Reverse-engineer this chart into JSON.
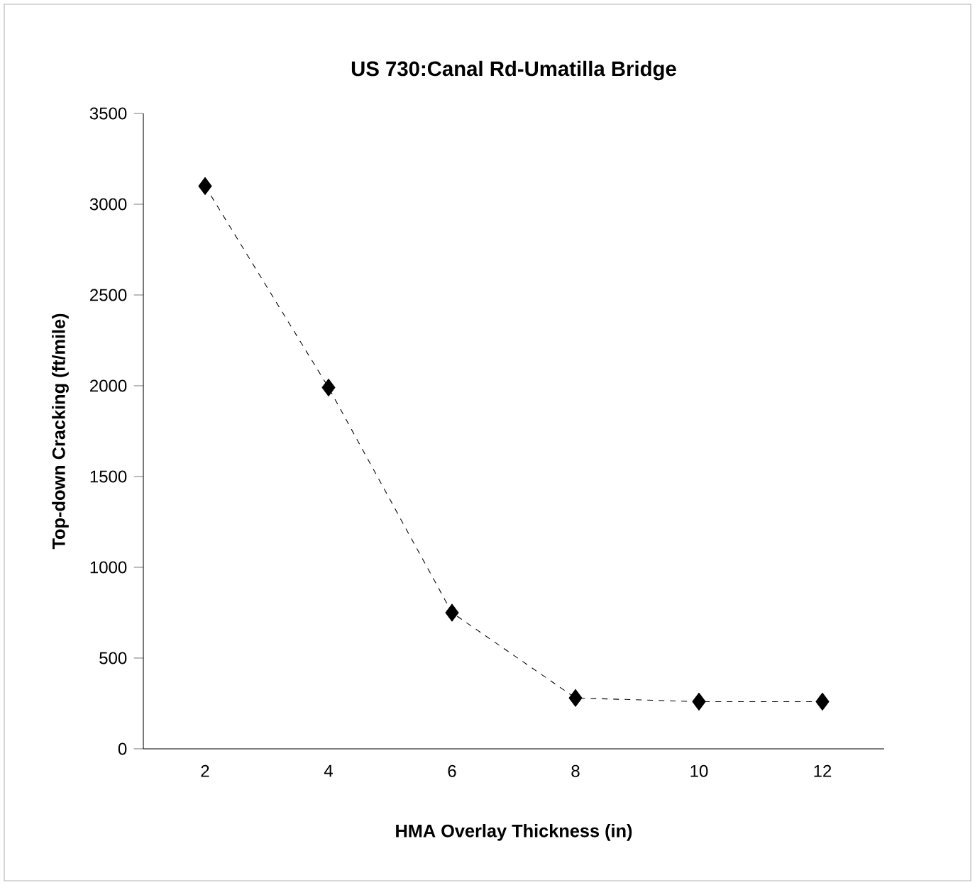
{
  "chart_data": {
    "type": "line",
    "title": "US 730:Canal  Rd-Umatilla  Bridge",
    "xlabel": "HMA Overlay Thickness (in)",
    "ylabel": "Top-down Cracking (ft/mile)",
    "categories": [
      "2",
      "4",
      "6",
      "8",
      "10",
      "12"
    ],
    "series": [
      {
        "color": "#000000",
        "values": [
          3100,
          1990,
          750,
          280,
          260,
          260
        ]
      }
    ],
    "ylim": [
      0,
      3500
    ],
    "yticks": [
      0,
      500,
      1000,
      1500,
      2000,
      2500,
      3000,
      3500
    ],
    "marker": "diamond",
    "line_style": "dashed",
    "grid": false
  }
}
